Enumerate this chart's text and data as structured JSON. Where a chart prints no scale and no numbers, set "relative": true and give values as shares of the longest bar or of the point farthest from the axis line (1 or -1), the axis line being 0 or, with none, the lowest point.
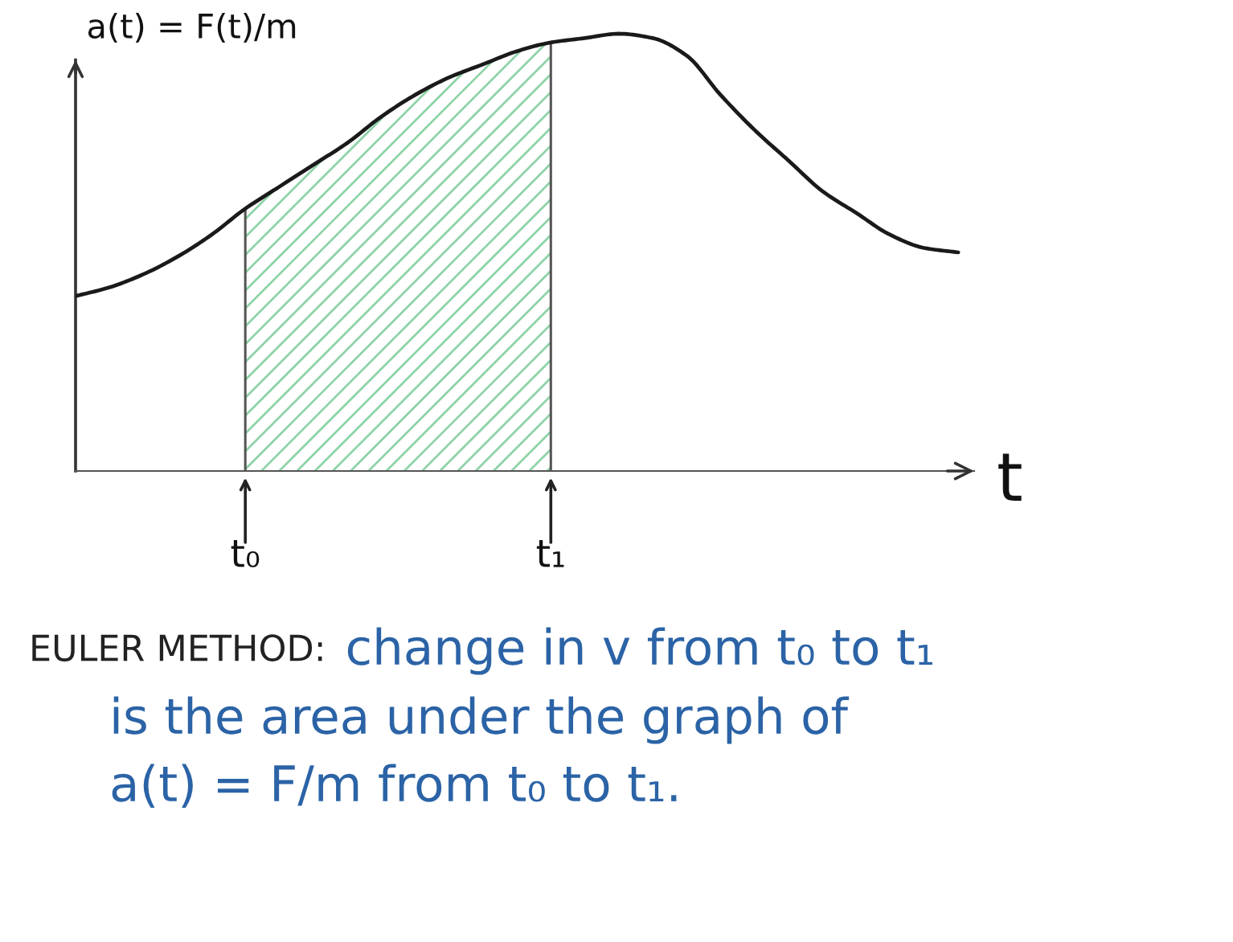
{
  "chart_data": {
    "type": "line",
    "relative": true,
    "ylabel": "a(t) = F(t)/m",
    "xlabel": "t",
    "categories": [
      null,
      null,
      null,
      null,
      null,
      "t₀",
      null,
      null,
      null,
      null,
      null,
      null,
      null,
      null,
      "t₁",
      null,
      null,
      null,
      null,
      null,
      null,
      null,
      null,
      null,
      null,
      null,
      null
    ],
    "series": [
      {
        "type": "area",
        "color": "#8fd3a8",
        "values": [
          null,
          null,
          null,
          null,
          null,
          0.6,
          0.65,
          0.7,
          0.75,
          0.81,
          0.86,
          0.9,
          0.93,
          0.96,
          0.98,
          null,
          null,
          null,
          null,
          null,
          null,
          null,
          null,
          null,
          null,
          null,
          null
        ]
      },
      {
        "color": "#1a1a1a",
        "values": [
          0.4,
          0.42,
          0.45,
          0.49,
          0.54,
          0.6,
          0.65,
          0.7,
          0.75,
          0.81,
          0.86,
          0.9,
          0.93,
          0.96,
          0.98,
          0.99,
          1,
          0.99,
          0.95,
          0.86,
          0.78,
          0.71,
          0.64,
          0.59,
          0.54,
          0.51,
          0.5
        ]
      }
    ],
    "annotations": [
      "EULER METHOD:",
      "change in v from t₀ to t₁",
      "is the area under the graph of",
      "a(t) = F/m from t₀ to t₁."
    ]
  }
}
